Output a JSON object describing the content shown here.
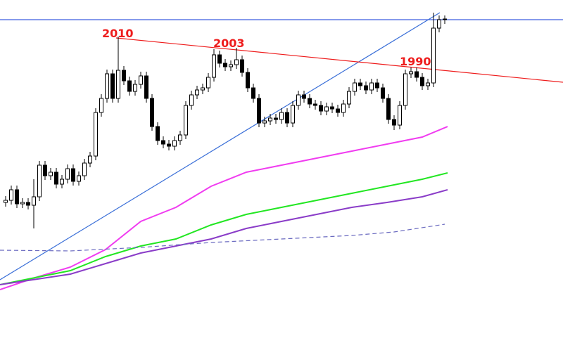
{
  "chart_data": {
    "type": "candlestick",
    "categories": [
      null,
      null,
      null,
      null,
      null,
      null,
      null,
      null,
      null,
      null,
      null,
      null,
      null,
      null,
      null,
      null,
      null,
      null,
      null,
      null,
      null,
      null,
      null,
      null,
      null,
      null,
      null,
      null,
      null,
      null,
      null,
      null,
      null,
      null,
      null,
      null,
      null,
      null,
      null,
      null,
      null,
      null,
      null,
      null,
      null,
      null,
      null,
      null,
      null,
      null,
      null,
      null,
      null,
      null,
      null,
      null,
      null,
      null,
      null,
      null,
      null,
      null,
      null,
      null,
      null,
      null,
      null,
      null,
      null,
      null,
      null,
      null,
      null,
      null,
      null,
      null,
      null,
      null,
      null
    ],
    "open": [
      200,
      203,
      218,
      198,
      200,
      196,
      208,
      253,
      238,
      243,
      226,
      233,
      248,
      230,
      238,
      256,
      266,
      328,
      348,
      383,
      348,
      388,
      373,
      358,
      368,
      380,
      348,
      308,
      288,
      283,
      280,
      288,
      296,
      338,
      353,
      360,
      363,
      378,
      410,
      398,
      393,
      396,
      403,
      385,
      363,
      348,
      313,
      316,
      320,
      318,
      328,
      313,
      338,
      353,
      348,
      340,
      338,
      330,
      336,
      333,
      328,
      340,
      358,
      370,
      366,
      360,
      370,
      363,
      348,
      318,
      310,
      338,
      383,
      386,
      378,
      366,
      370,
      448,
      460
    ],
    "high": [
      209,
      224,
      224,
      206,
      206,
      233,
      259,
      259,
      249,
      249,
      239,
      254,
      254,
      244,
      262,
      272,
      334,
      354,
      389,
      389,
      436,
      394,
      379,
      374,
      386,
      386,
      354,
      314,
      294,
      289,
      294,
      302,
      344,
      359,
      366,
      369,
      384,
      418,
      416,
      404,
      402,
      420,
      409,
      391,
      369,
      354,
      322,
      326,
      326,
      334,
      334,
      344,
      359,
      359,
      354,
      346,
      344,
      342,
      342,
      339,
      346,
      364,
      376,
      376,
      372,
      376,
      376,
      369,
      354,
      324,
      344,
      389,
      392,
      392,
      384,
      376,
      470,
      466,
      466
    ],
    "low": [
      194,
      197,
      192,
      192,
      190,
      163,
      202,
      232,
      232,
      220,
      220,
      227,
      224,
      224,
      232,
      250,
      260,
      322,
      342,
      342,
      342,
      367,
      352,
      352,
      362,
      342,
      302,
      282,
      277,
      274,
      274,
      282,
      290,
      332,
      347,
      354,
      357,
      372,
      392,
      387,
      387,
      390,
      379,
      357,
      342,
      307,
      307,
      310,
      312,
      312,
      307,
      307,
      332,
      342,
      334,
      332,
      324,
      324,
      327,
      322,
      322,
      334,
      352,
      360,
      354,
      354,
      357,
      342,
      312,
      303,
      304,
      332,
      377,
      372,
      360,
      360,
      364,
      442,
      454
    ],
    "close": [
      203,
      218,
      198,
      200,
      196,
      208,
      253,
      238,
      243,
      226,
      233,
      248,
      230,
      238,
      256,
      266,
      328,
      348,
      383,
      348,
      388,
      373,
      358,
      368,
      380,
      348,
      308,
      288,
      283,
      280,
      288,
      296,
      338,
      353,
      360,
      363,
      378,
      410,
      398,
      393,
      396,
      403,
      385,
      363,
      348,
      313,
      316,
      320,
      318,
      328,
      313,
      338,
      353,
      348,
      340,
      338,
      330,
      336,
      333,
      328,
      340,
      358,
      370,
      366,
      360,
      370,
      363,
      348,
      318,
      310,
      338,
      383,
      386,
      378,
      366,
      370,
      448,
      460,
      461
    ],
    "up_color": "#ffffff",
    "down_color": "#000000",
    "edge_color": "#000000",
    "lines": [
      {
        "color": "#3f5ee0",
        "dashed": false,
        "x": [
          -1,
          99
        ],
        "values": [
          460,
          460
        ]
      },
      {
        "color": "#3a6fd8",
        "dashed": false,
        "x": [
          -1,
          77.125
        ],
        "values": [
          90,
          470
        ]
      },
      {
        "color": "#ee1c1c",
        "dashed": false,
        "x": [
          19.625,
          99
        ],
        "values": [
          434,
          371
        ]
      },
      {
        "color": "#f03cf0",
        "dashed": false,
        "x": [
          -1,
          5.25,
          11.5,
          17.75,
          24,
          30.25,
          36.5,
          42.75,
          49,
          55.25,
          61.5,
          67.75,
          74,
          78.5
        ],
        "values": [
          76,
          93,
          108,
          133,
          173,
          193,
          223,
          243,
          253,
          263,
          273,
          283,
          293,
          308
        ]
      },
      {
        "color": "#22e622",
        "dashed": false,
        "x": [
          -1,
          11.5,
          17.75,
          24,
          30.25,
          36.5,
          42.75,
          49,
          55.25,
          61.5,
          67.75,
          74,
          78.5
        ],
        "values": [
          83,
          103,
          123,
          138,
          148,
          168,
          183,
          193,
          203,
          213,
          223,
          233,
          242
        ]
      },
      {
        "color": "#8a3cc8",
        "dashed": false,
        "x": [
          -1,
          11.5,
          17.75,
          24,
          30.25,
          36.5,
          42.75,
          49,
          55.25,
          61.5,
          67.75,
          74,
          78.5
        ],
        "values": [
          83,
          98,
          113,
          128,
          138,
          148,
          163,
          173,
          183,
          193,
          200,
          208,
          218
        ]
      },
      {
        "color": "#6a6ac0",
        "dashed": true,
        "x": [
          -1,
          11.5,
          24,
          36.5,
          49,
          61.5,
          69,
          78
        ],
        "values": [
          132,
          131,
          136,
          143,
          148,
          153,
          158,
          169
        ]
      }
    ],
    "xlim": [
      -1,
      99
    ],
    "ylim": [
      0,
      488
    ],
    "annotations": [
      "2010",
      "2003",
      "1990"
    ]
  }
}
